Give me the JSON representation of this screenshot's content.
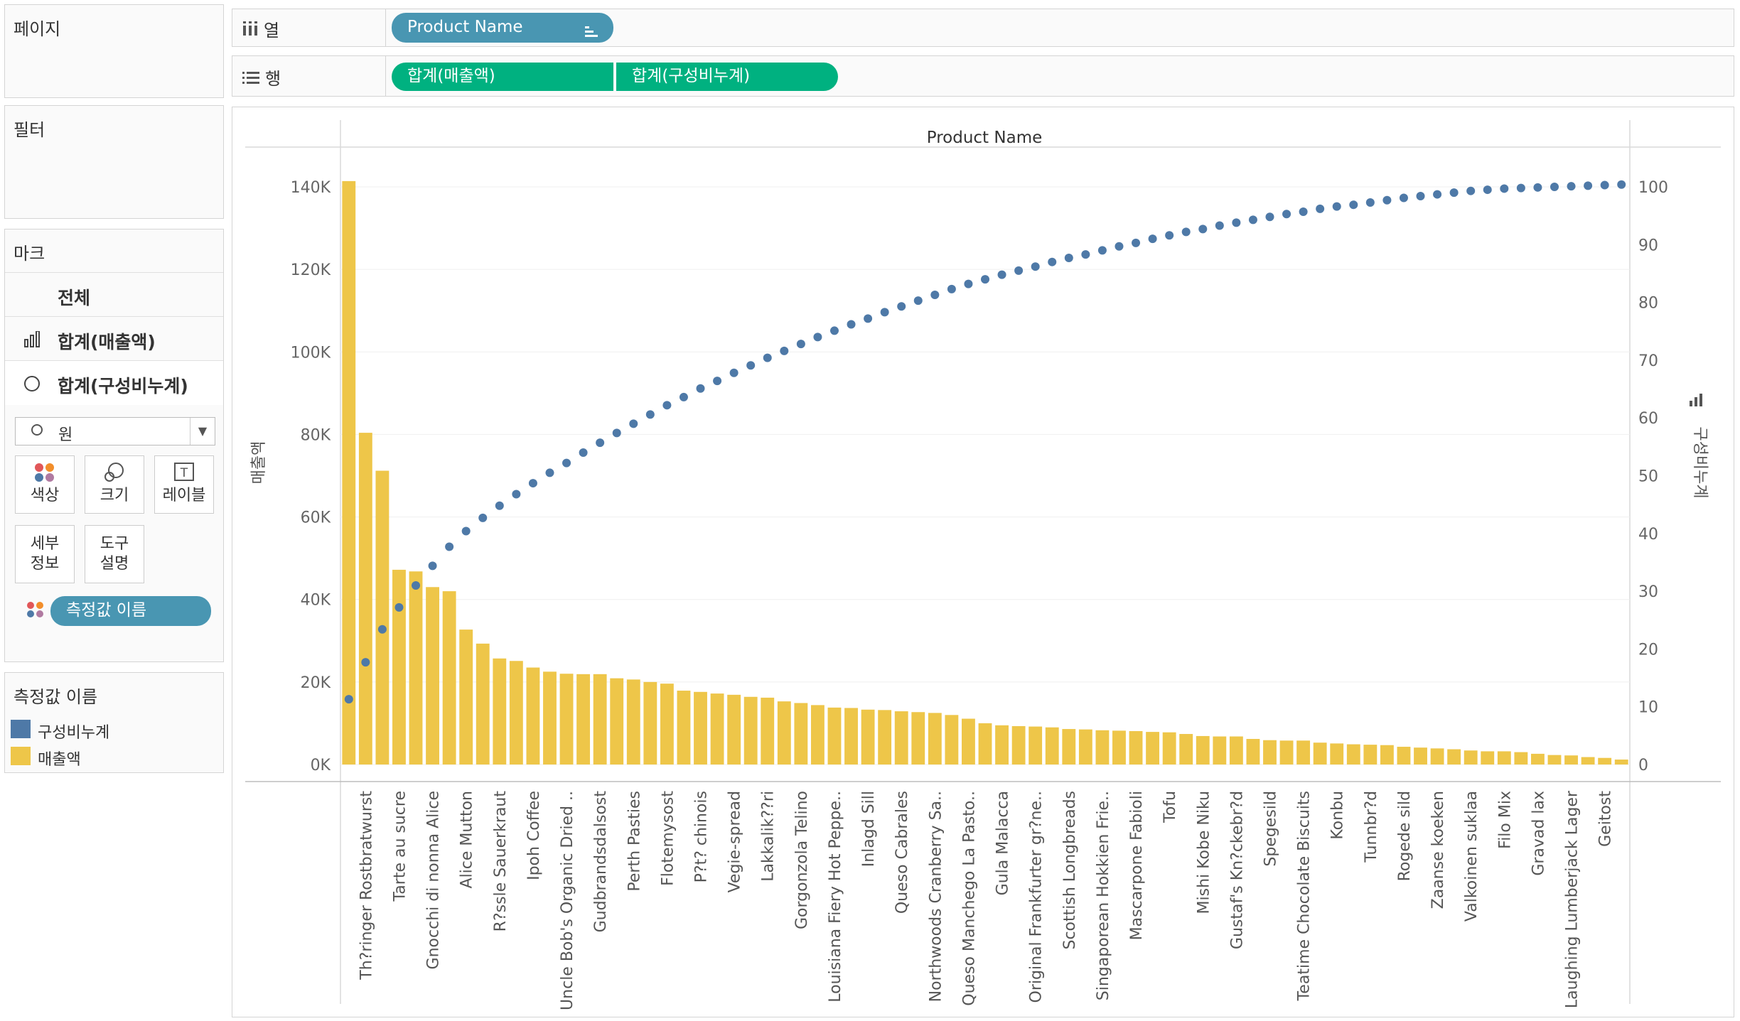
{
  "shelves": {
    "columns": {
      "label": "열",
      "pill": "Product Name"
    },
    "rows": {
      "label": "행",
      "pills": [
        "합계(매출액)",
        "합계(구성비누계)"
      ]
    }
  },
  "cards": {
    "pages": "페이지",
    "filters": "필터",
    "marks": "마크",
    "legend": "측정값 이름"
  },
  "marks": {
    "all": "전체",
    "sales": "합계(매출액)",
    "cumulative": "합계(구성비누계)",
    "mark_type": "원",
    "buttons": {
      "color": "색상",
      "size": "크기",
      "label": "레이블",
      "detail": [
        "세부",
        "정보"
      ],
      "tooltip": [
        "도구",
        "설명"
      ]
    },
    "measure_pill": "측정값 이름"
  },
  "legend": {
    "items": [
      {
        "name": "구성비누계",
        "color": "#4e79a7"
      },
      {
        "name": "매출액",
        "color": "#eec649"
      }
    ]
  },
  "colors": {
    "bar": "#eec649",
    "dot": "#4e79a7",
    "pill_blue": "#4996b2",
    "pill_green": "#00b180"
  },
  "chart_data": {
    "type": "bar+scatter",
    "title": "Product Name",
    "ylabel_left": "매출액",
    "ylabel_right": "구성비누계",
    "ylim_left": [
      0,
      140000
    ],
    "ylim_right": [
      0,
      100
    ],
    "left_ticks": [
      "0K",
      "20K",
      "40K",
      "60K",
      "80K",
      "100K",
      "120K",
      "140K"
    ],
    "right_ticks": [
      "0",
      "10",
      "20",
      "30",
      "40",
      "50",
      "60",
      "70",
      "80",
      "90",
      "100"
    ],
    "labels": [
      "Th?ringer Rostbratwurst",
      "Tarte au sucre",
      "Gnocchi di nonna Alice",
      "Alice Mutton",
      "R?ssle Sauerkraut",
      "Ipoh Coffee",
      "Uncle Bob's Organic Dried ..",
      "Gudbrandsdalsost",
      "Perth Pasties",
      "Flotemysost",
      "P?t? chinois",
      "Vegie-spread",
      "Lakkalik??ri",
      "Gorgonzola Telino",
      "Louisiana Fiery Hot Peppe..",
      "Inlagd Sill",
      "Queso Cabrales",
      "Northwoods Cranberry Sa..",
      "Queso Manchego La Pasto..",
      "Gula Malacca",
      "Original Frankfurter gr?ne..",
      "Scottish Longbreads",
      "Singaporean Hokkien Frie..",
      "Mascarpone Fabioli",
      "Tofu",
      "Mishi Kobe Niku",
      "Gustaf's Kn?ckebr?d",
      "Spegesild",
      "Teatime Chocolate Biscuits",
      "Konbu",
      "Tunnbr?d",
      "Rogede sild",
      "Zaanse koeken",
      "Valkoinen suklaa",
      "Filo Mix",
      "Gravad lax",
      "Laughing Lumberjack Lager",
      "Geitost"
    ],
    "sales": [
      141400,
      80400,
      71200,
      47200,
      46800,
      43000,
      42000,
      32700,
      29300,
      25700,
      25100,
      23500,
      22500,
      22000,
      21900,
      21900,
      20900,
      20600,
      20000,
      19600,
      17900,
      17600,
      17200,
      16900,
      16400,
      16200,
      15300,
      14900,
      14400,
      13800,
      13700,
      13300,
      13200,
      12900,
      12700,
      12500,
      12000,
      11100,
      10000,
      9500,
      9300,
      9200,
      9000,
      8600,
      8500,
      8300,
      8200,
      8100,
      7900,
      7800,
      7400,
      6900,
      6800,
      6800,
      6200,
      5900,
      5800,
      5800,
      5300,
      5100,
      4900,
      4800,
      4700,
      4300,
      4100,
      3900,
      3700,
      3400,
      3200,
      3200,
      3000,
      2600,
      2300,
      2200,
      1800,
      1600,
      1200
    ],
    "cumulative": [
      11.3,
      17.7,
      23.4,
      27.2,
      31.0,
      34.4,
      37.7,
      40.4,
      42.7,
      44.8,
      46.8,
      48.7,
      50.5,
      52.2,
      54.0,
      55.7,
      57.4,
      59.0,
      60.6,
      62.2,
      63.6,
      65.1,
      66.4,
      67.8,
      69.1,
      70.4,
      71.6,
      72.8,
      74.0,
      75.1,
      76.2,
      77.2,
      78.3,
      79.3,
      80.3,
      81.3,
      82.3,
      83.2,
      84.0,
      84.8,
      85.5,
      86.2,
      87.0,
      87.7,
      88.3,
      89.0,
      89.7,
      90.3,
      91.0,
      91.6,
      92.2,
      92.7,
      93.3,
      93.8,
      94.3,
      94.8,
      95.3,
      95.7,
      96.2,
      96.6,
      96.9,
      97.3,
      97.7,
      98.1,
      98.4,
      98.7,
      99.0,
      99.3,
      99.5,
      99.7,
      99.8,
      99.9,
      100.0,
      100.1,
      100.2,
      100.3,
      100.4
    ]
  }
}
